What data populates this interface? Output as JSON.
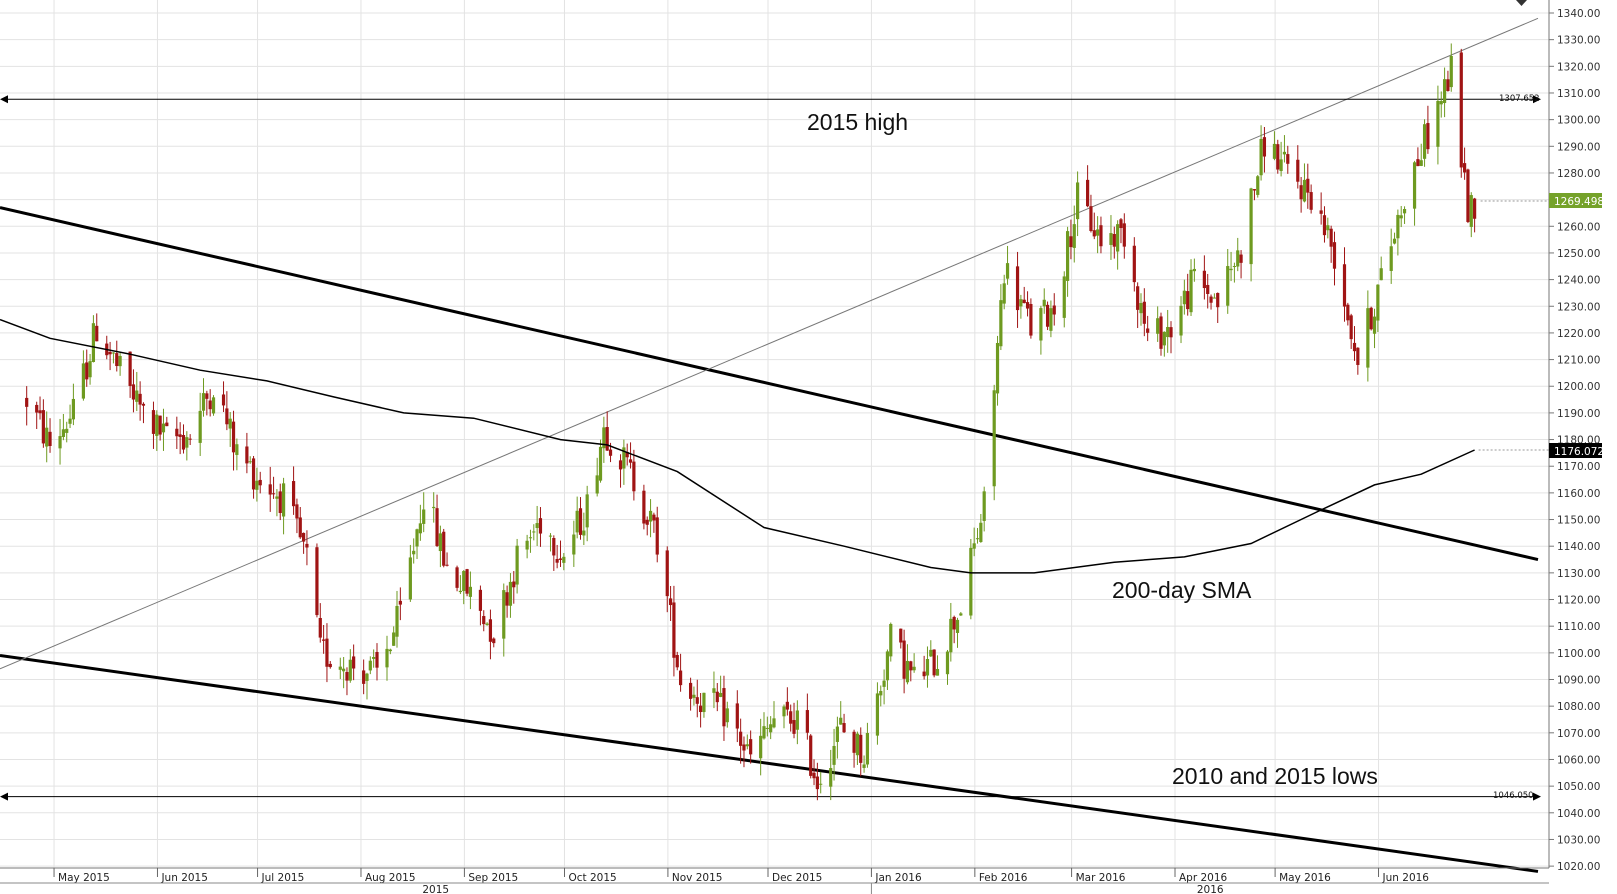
{
  "chart_data": {
    "type": "candlestick",
    "title": "",
    "xlabel": "",
    "ylabel": "",
    "ylim": [
      1015,
      1345
    ],
    "y_ticks": [
      "1020.00",
      "1030.00",
      "1040.00",
      "1050.00",
      "1060.00",
      "1070.00",
      "1080.00",
      "1090.00",
      "1100.00",
      "1110.00",
      "1120.00",
      "1130.00",
      "1140.00",
      "1150.00",
      "1160.00",
      "1170.00",
      "1180.00",
      "1190.00",
      "1200.00",
      "1210.00",
      "1220.00",
      "1230.00",
      "1240.00",
      "1250.00",
      "1260.00",
      "1270.00",
      "1280.00",
      "1290.00",
      "1300.00",
      "1310.00",
      "1320.00",
      "1330.00",
      "1340.00"
    ],
    "x_ticks": [
      "May 2015",
      "Jun 2015",
      "Jul 2015",
      "Aug 2015",
      "Sep 2015",
      "Oct 2015",
      "Nov 2015",
      "Dec 2015",
      "Jan 2016",
      "Feb 2016",
      "Mar 2016",
      "Apr 2016",
      "May 2016",
      "Jun 2016"
    ],
    "year_labels": [
      "2015",
      "2016"
    ],
    "last_price_label": "1269.498",
    "sma_value_label": "1176.072",
    "high_line_label": "1307.652",
    "low_line_label": "1046.050",
    "colors": {
      "up": "#6e9a20",
      "down": "#a01414",
      "last_tag": "#75a22a",
      "sma_tag": "#000000",
      "grid": "#e3e3e3"
    },
    "price_path": [
      [
        "2015-04-24",
        1195
      ],
      [
        "2015-05-01",
        1178
      ],
      [
        "2015-05-08",
        1190
      ],
      [
        "2015-05-15",
        1222
      ],
      [
        "2015-05-22",
        1205
      ],
      [
        "2015-05-29",
        1190
      ],
      [
        "2015-06-05",
        1180
      ],
      [
        "2015-06-12",
        1182
      ],
      [
        "2015-06-19",
        1201
      ],
      [
        "2015-06-26",
        1175
      ],
      [
        "2015-07-03",
        1165
      ],
      [
        "2015-07-10",
        1158
      ],
      [
        "2015-07-17",
        1135
      ],
      [
        "2015-07-21",
        1100
      ],
      [
        "2015-07-31",
        1095
      ],
      [
        "2015-08-07",
        1092
      ],
      [
        "2015-08-14",
        1114
      ],
      [
        "2015-08-21",
        1160
      ],
      [
        "2015-08-28",
        1132
      ],
      [
        "2015-09-04",
        1122
      ],
      [
        "2015-09-11",
        1108
      ],
      [
        "2015-09-18",
        1135
      ],
      [
        "2015-09-25",
        1150
      ],
      [
        "2015-10-02",
        1137
      ],
      [
        "2015-10-09",
        1155
      ],
      [
        "2015-10-14",
        1185
      ],
      [
        "2015-10-23",
        1165
      ],
      [
        "2015-10-30",
        1142
      ],
      [
        "2015-11-06",
        1090
      ],
      [
        "2015-11-13",
        1082
      ],
      [
        "2015-11-20",
        1077
      ],
      [
        "2015-11-27",
        1060
      ],
      [
        "2015-12-04",
        1075
      ],
      [
        "2015-12-11",
        1075
      ],
      [
        "2015-12-17",
        1052
      ],
      [
        "2015-12-24",
        1072
      ],
      [
        "2015-12-31",
        1062
      ],
      [
        "2016-01-08",
        1105
      ],
      [
        "2016-01-15",
        1090
      ],
      [
        "2016-01-22",
        1098
      ],
      [
        "2016-01-29",
        1118
      ],
      [
        "2016-02-05",
        1155
      ],
      [
        "2016-02-11",
        1245
      ],
      [
        "2016-02-19",
        1222
      ],
      [
        "2016-02-26",
        1230
      ],
      [
        "2016-03-04",
        1270
      ],
      [
        "2016-03-11",
        1255
      ],
      [
        "2016-03-18",
        1258
      ],
      [
        "2016-03-25",
        1218
      ],
      [
        "2016-04-01",
        1222
      ],
      [
        "2016-04-08",
        1240
      ],
      [
        "2016-04-15",
        1232
      ],
      [
        "2016-04-22",
        1252
      ],
      [
        "2016-04-29",
        1292
      ],
      [
        "2016-05-06",
        1280
      ],
      [
        "2016-05-13",
        1272
      ],
      [
        "2016-05-20",
        1250
      ],
      [
        "2016-05-27",
        1210
      ],
      [
        "2016-06-03",
        1240
      ],
      [
        "2016-06-10",
        1272
      ],
      [
        "2016-06-17",
        1295
      ],
      [
        "2016-06-24",
        1318
      ],
      [
        "2016-06-29",
        1266
      ],
      [
        "2016-07-01",
        1269.498
      ]
    ],
    "series": [
      {
        "name": "200-day SMA",
        "type": "line",
        "points": [
          [
            "2015-04-16",
            1225
          ],
          [
            "2015-05-01",
            1218
          ],
          [
            "2015-05-25",
            1212
          ],
          [
            "2015-06-15",
            1206
          ],
          [
            "2015-07-05",
            1202
          ],
          [
            "2015-07-25",
            1196
          ],
          [
            "2015-08-15",
            1190
          ],
          [
            "2015-09-05",
            1188
          ],
          [
            "2015-10-01",
            1180
          ],
          [
            "2015-10-15",
            1178
          ],
          [
            "2015-11-05",
            1168
          ],
          [
            "2015-12-01",
            1147
          ],
          [
            "2015-12-25",
            1140
          ],
          [
            "2016-01-20",
            1132
          ],
          [
            "2016-02-01",
            1130
          ],
          [
            "2016-02-20",
            1130
          ],
          [
            "2016-03-15",
            1134
          ],
          [
            "2016-04-05",
            1136
          ],
          [
            "2016-04-25",
            1141
          ],
          [
            "2016-05-15",
            1153
          ],
          [
            "2016-06-01",
            1163
          ],
          [
            "2016-06-15",
            1167
          ],
          [
            "2016-07-01",
            1176.072
          ]
        ]
      }
    ],
    "trendlines": [
      {
        "kind": "descending-channel-upper",
        "points": [
          [
            "2015-04-16",
            1267
          ],
          [
            "2016-07-20",
            1135
          ]
        ]
      },
      {
        "kind": "descending-channel-lower",
        "points": [
          [
            "2015-04-16",
            1099
          ],
          [
            "2016-07-20",
            1018
          ]
        ]
      },
      {
        "kind": "ascending-trendline",
        "points": [
          [
            "2015-04-16",
            1094
          ],
          [
            "2016-07-20",
            1338
          ]
        ]
      },
      {
        "kind": "horizontal",
        "label": "2015 high",
        "y": 1307.652
      },
      {
        "kind": "horizontal",
        "label": "2010 and 2015 lows",
        "y": 1046.05
      }
    ],
    "annotations": [
      "2015 high",
      "200-day SMA",
      "2010 and 2015 lows"
    ]
  }
}
